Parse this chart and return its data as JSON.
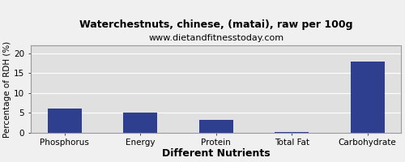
{
  "title": "Waterchestnuts, chinese, (matai), raw per 100g",
  "subtitle": "www.dietandfitnesstoday.com",
  "xlabel": "Different Nutrients",
  "ylabel": "Percentage of RDH (%)",
  "categories": [
    "Phosphorus",
    "Energy",
    "Protein",
    "Total Fat",
    "Carbohydrate"
  ],
  "values": [
    6.0,
    5.0,
    3.2,
    0.1,
    18.0
  ],
  "bar_color": "#2e3f8f",
  "ylim": [
    0,
    22
  ],
  "yticks": [
    0,
    5,
    10,
    15,
    20
  ],
  "background_color": "#f0f0f0",
  "plot_bg_color": "#e0e0e0",
  "title_fontsize": 9,
  "subtitle_fontsize": 8,
  "xlabel_fontsize": 9,
  "ylabel_fontsize": 7.5,
  "tick_fontsize": 7.5
}
